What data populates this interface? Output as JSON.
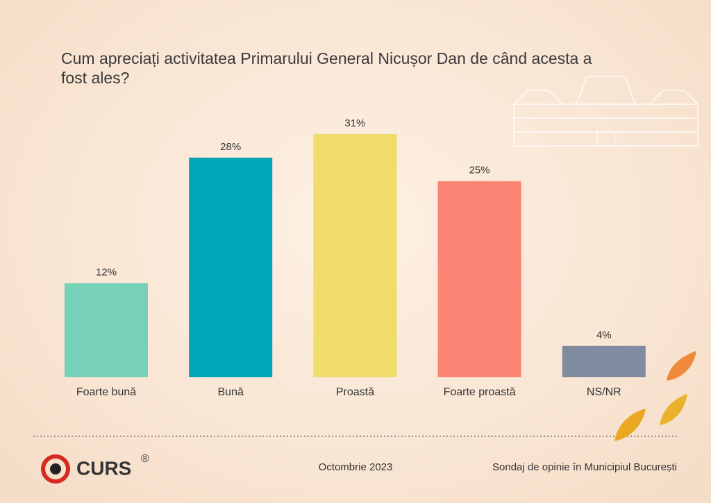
{
  "chart_data": {
    "type": "bar",
    "title": "Cum apreciați activitatea Primarului General Nicușor Dan de când acesta a fost ales?",
    "categories": [
      "Foarte bună",
      "Bună",
      "Proastă",
      "Foarte proastă",
      "NS/NR"
    ],
    "values": [
      12,
      28,
      31,
      25,
      4
    ],
    "value_labels": [
      "12%",
      "28%",
      "31%",
      "25%",
      "4%"
    ],
    "colors": [
      "#76d1b8",
      "#00a5b8",
      "#efdc6b",
      "#fc8474",
      "#7f8b9f"
    ]
  },
  "footer": {
    "logo": "CURS",
    "logo_mark": "®",
    "date": "Octombrie 2023",
    "note": "Sondaj de opinie în Municipiul București"
  }
}
